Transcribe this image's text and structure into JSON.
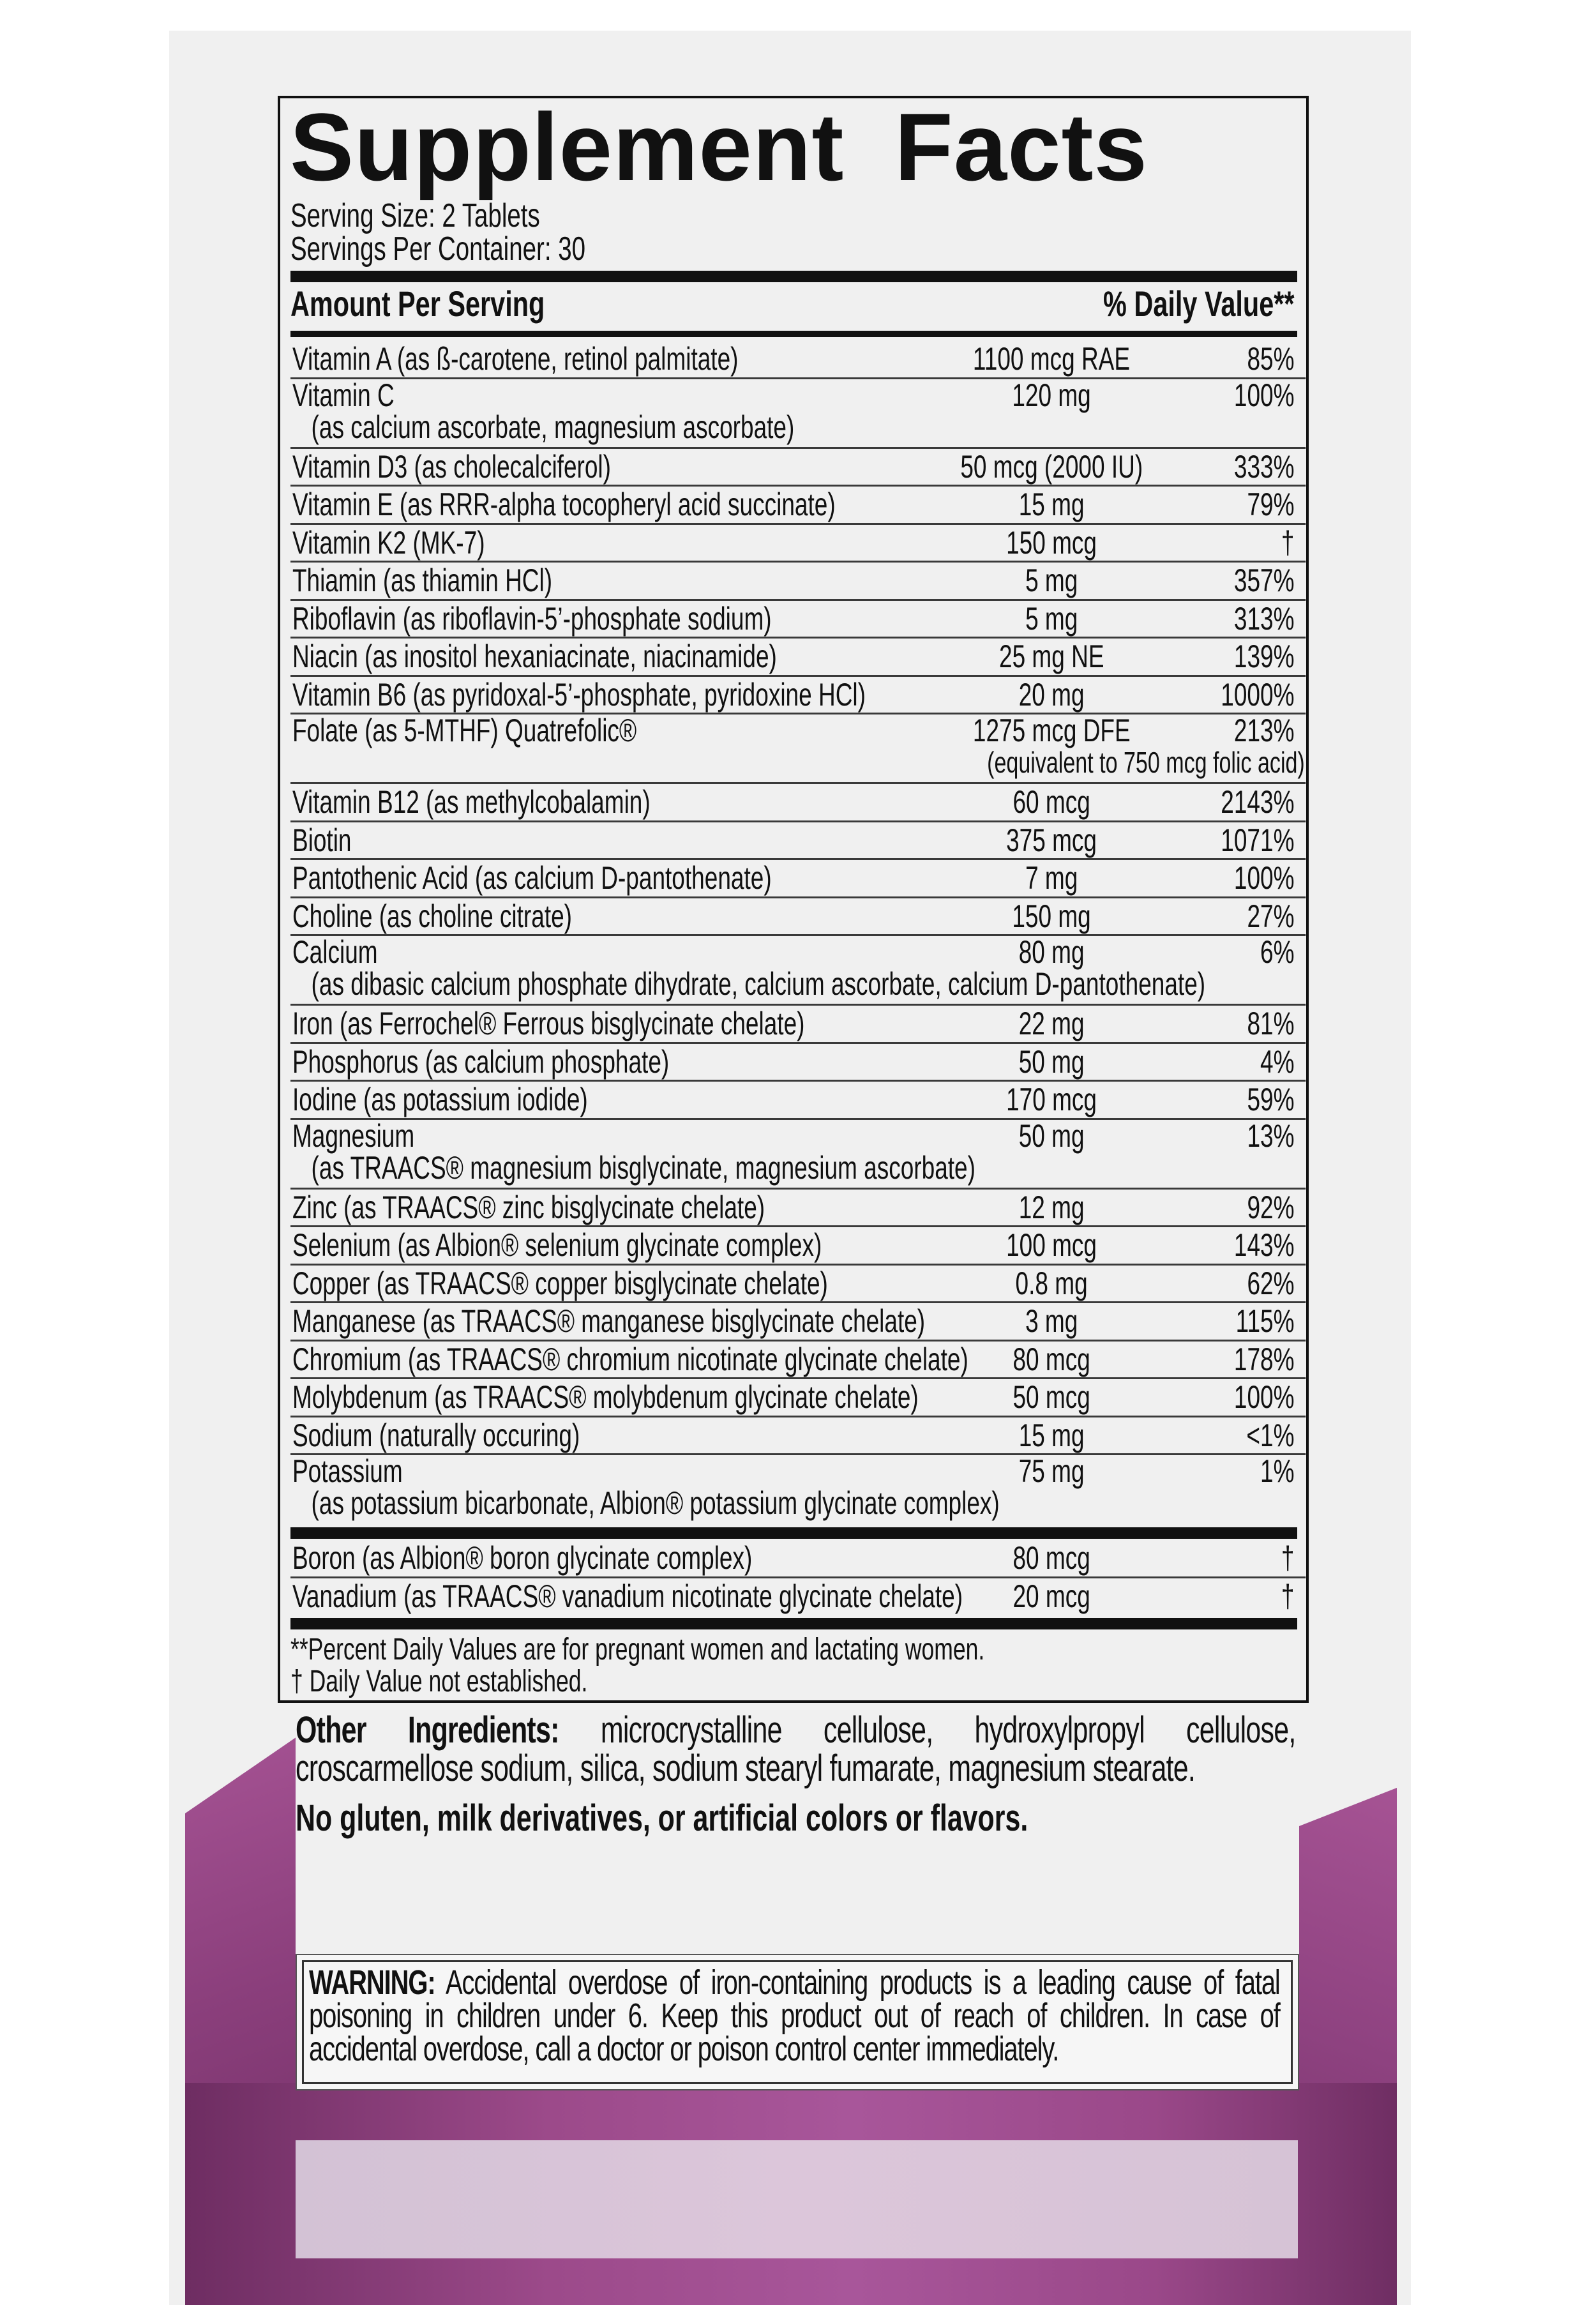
{
  "colors": {
    "panel": "#f0f0f0",
    "purple": "#9c4a8a",
    "purple_dark": "#6e2d62",
    "light_band": "#d8c4d8",
    "text": "#111111"
  },
  "facts": {
    "title": "Supplement Facts",
    "serving_size": "Serving Size: 2 Tablets",
    "servings_per_container": "Servings Per Container: 30",
    "header_amount": "Amount Per Serving",
    "header_dv": "% Daily Value**",
    "rows": [
      {
        "name": "Vitamin A (as ß-carotene, retinol palmitate)",
        "amount": "1100 mcg RAE",
        "dv": "85%"
      },
      {
        "name": "Vitamin C",
        "sub": "(as calcium ascorbate, magnesium ascorbate)",
        "amount": "120 mg",
        "dv": "100%"
      },
      {
        "name": "Vitamin D3 (as cholecalciferol)",
        "amount": "50 mcg (2000 IU)",
        "dv": "333%"
      },
      {
        "name": "Vitamin E (as RRR-alpha tocopheryl acid succinate)",
        "amount": "15 mg",
        "dv": "79%"
      },
      {
        "name": "Vitamin K2 (MK-7)",
        "amount": "150 mcg",
        "dv": "†"
      },
      {
        "name": "Thiamin (as thiamin HCl)",
        "amount": "5 mg",
        "dv": "357%"
      },
      {
        "name": "Riboflavin (as riboflavin-5’-phosphate sodium)",
        "amount": "5 mg",
        "dv": "313%"
      },
      {
        "name": "Niacin (as inositol hexaniacinate, niacinamide)",
        "amount": "25 mg NE",
        "dv": "139%"
      },
      {
        "name": "Vitamin B6 (as pyridoxal-5’-phosphate, pyridoxine HCl)",
        "amount": "20 mg",
        "dv": "1000%"
      },
      {
        "name": "Folate (as 5-MTHF) Quatrefolic®",
        "amount": "1275 mcg DFE",
        "note": "(equivalent to 750 mcg folic acid)",
        "dv": "213%"
      },
      {
        "name": "Vitamin B12 (as methylcobalamin)",
        "amount": "60 mcg",
        "dv": "2143%"
      },
      {
        "name": "Biotin",
        "amount": "375 mcg",
        "dv": "1071%"
      },
      {
        "name": "Pantothenic Acid (as calcium D-pantothenate)",
        "amount": "7 mg",
        "dv": "100%"
      },
      {
        "name": "Choline (as choline citrate)",
        "amount": "150 mg",
        "dv": "27%"
      },
      {
        "name": "Calcium",
        "sub": "(as dibasic calcium phosphate dihydrate, calcium ascorbate, calcium D-pantothenate)",
        "amount": "80 mg",
        "dv": "6%"
      },
      {
        "name": "Iron (as Ferrochel® Ferrous bisglycinate chelate)",
        "amount": "22 mg",
        "dv": "81%"
      },
      {
        "name": "Phosphorus (as calcium phosphate)",
        "amount": "50 mg",
        "dv": "4%"
      },
      {
        "name": "Iodine (as potassium iodide)",
        "amount": "170 mcg",
        "dv": "59%"
      },
      {
        "name": "Magnesium",
        "sub": "(as TRAACS® magnesium bisglycinate, magnesium ascorbate)",
        "amount": "50 mg",
        "dv": "13%"
      },
      {
        "name": "Zinc (as TRAACS® zinc bisglycinate chelate)",
        "amount": "12 mg",
        "dv": "92%"
      },
      {
        "name": "Selenium (as Albion® selenium glycinate complex)",
        "amount": "100 mcg",
        "dv": "143%"
      },
      {
        "name": "Copper (as TRAACS® copper bisglycinate chelate)",
        "amount": "0.8 mg",
        "dv": "62%"
      },
      {
        "name": "Manganese (as TRAACS® manganese bisglycinate chelate)",
        "amount": "3 mg",
        "dv": "115%"
      },
      {
        "name": "Chromium (as TRAACS® chromium nicotinate glycinate chelate)",
        "amount": "80 mcg",
        "dv": "178%"
      },
      {
        "name": "Molybdenum (as TRAACS® molybdenum glycinate chelate)",
        "amount": "50 mcg",
        "dv": "100%"
      },
      {
        "name": "Sodium (naturally occuring)",
        "amount": "15 mg",
        "dv": "<1%"
      },
      {
        "name": "Potassium",
        "sub": "(as potassium bicarbonate, Albion® potassium glycinate complex)",
        "amount": "75 mg",
        "dv": "1%"
      }
    ],
    "extra_rows": [
      {
        "name": "Boron (as Albion® boron glycinate complex)",
        "amount": "80 mcg",
        "dv": "†"
      },
      {
        "name": "Vanadium (as TRAACS® vanadium nicotinate glycinate chelate)",
        "amount": "20 mcg",
        "dv": "†"
      }
    ],
    "footnote_dv": "**Percent Daily Values are for pregnant women and lactating women.",
    "footnote_dagger": "† Daily Value not established."
  },
  "other_ingredients": {
    "label": "Other Ingredients:",
    "text": " microcrystalline cellulose, hydroxylpropyl cellulose, croscarmellose sodium, silica, sodium stearyl fumarate, magnesium stearate."
  },
  "free_from": "No gluten, milk derivatives, or artificial colors or flavors.",
  "warning": {
    "label": "WARNING:",
    "text": " Accidental overdose of iron-containing products is a leading cause of fatal poisoning in children under 6. Keep this product out of reach of children. In case of accidental overdose, call a doctor or poison control center immediately."
  }
}
